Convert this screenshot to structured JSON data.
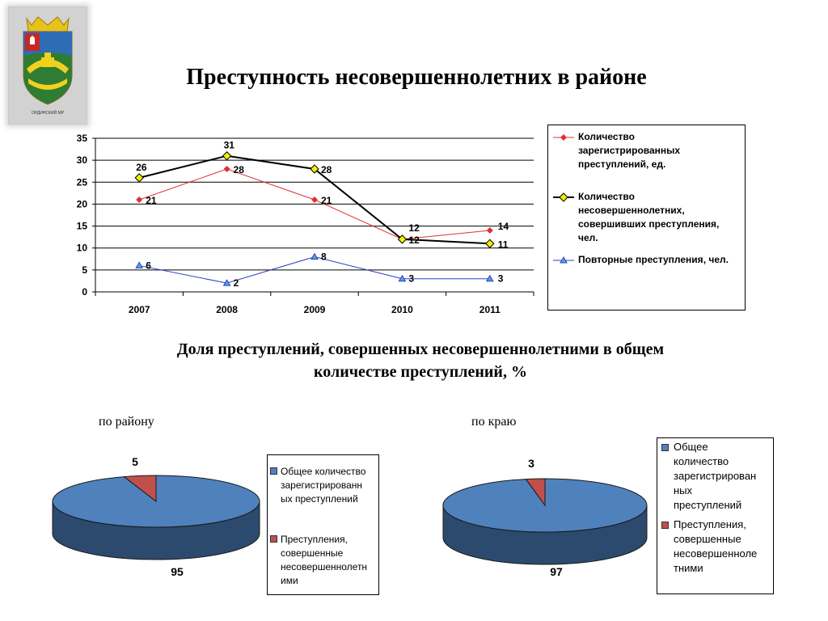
{
  "slide": {
    "title": "Преступность несовершеннолетних в районе",
    "subtitle_line1": "Доля преступлений, совершенных несовершеннолетними в общем",
    "subtitle_line2": "количестве преступлений, %",
    "crest_caption": "ОРДИНСКИЙ МР"
  },
  "chart_data": [
    {
      "type": "line",
      "categories": [
        "2007",
        "2008",
        "2009",
        "2010",
        "2011"
      ],
      "ylim": [
        0,
        35
      ],
      "yticks": [
        0,
        5,
        10,
        15,
        20,
        25,
        30,
        35
      ],
      "grid": true,
      "legend_position": "right",
      "series": [
        {
          "name_lines": [
            "Количество",
            "зарегистрированных",
            "преступлений, ед."
          ],
          "values": [
            21,
            28,
            21,
            12,
            14
          ],
          "color": "#e03030",
          "marker": "diamond",
          "labels": [
            "21",
            "28",
            "21",
            "12",
            "14"
          ]
        },
        {
          "name_lines": [
            "Количество",
            "несовершеннолетних,",
            "совершивших преступления,",
            "чел."
          ],
          "values": [
            26,
            31,
            28,
            12,
            11
          ],
          "color": "#000000",
          "marker": "diamond-yellow",
          "labels": [
            "26",
            "31",
            "28",
            "12",
            "11"
          ]
        },
        {
          "name_lines": [
            "Повторные преступления, чел."
          ],
          "values": [
            6,
            2,
            8,
            3,
            3
          ],
          "color": "#2a3fbf",
          "marker": "triangle",
          "labels": [
            "6",
            "2",
            "8",
            "3",
            "3"
          ]
        }
      ]
    },
    {
      "type": "pie",
      "title": "по району",
      "values": [
        95,
        5
      ],
      "labels": [
        "95",
        "5"
      ],
      "colors": [
        "#4f81bd",
        "#c0504d"
      ],
      "legend": [
        {
          "lines": [
            "Общее количество",
            "зарегистрированн",
            "ых преступлений"
          ]
        },
        {
          "lines": [
            "Преступления,",
            "совершенные",
            "несовершеннолетн",
            "ими"
          ]
        }
      ]
    },
    {
      "type": "pie",
      "title": "по краю",
      "values": [
        97,
        3
      ],
      "labels": [
        "97",
        "3"
      ],
      "colors": [
        "#4f81bd",
        "#c0504d"
      ],
      "legend": [
        {
          "lines": [
            "Общее",
            "количество",
            "зарегистрирован",
            "ных",
            "преступлений"
          ]
        },
        {
          "lines": [
            "Преступления,",
            "совершенные",
            "несовершенноле",
            "тними"
          ]
        }
      ]
    }
  ]
}
